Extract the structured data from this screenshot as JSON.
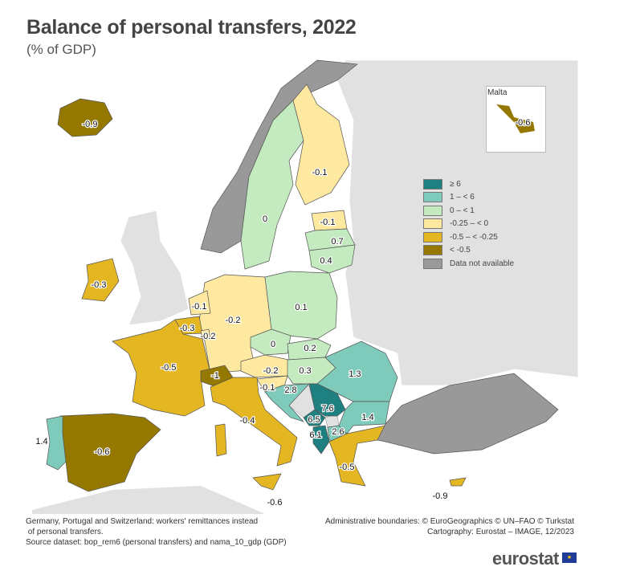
{
  "title": "Balance of personal transfers, 2022",
  "subtitle": "(% of GDP)",
  "legend": {
    "items": [
      {
        "label": "≥ 6",
        "color": "#1e8080"
      },
      {
        "label": "1 – < 6",
        "color": "#7ecbbb"
      },
      {
        "label": "0 – < 1",
        "color": "#c4eac0"
      },
      {
        "label": "-0.25 – < 0",
        "color": "#ffe9a0"
      },
      {
        "label": "-0.5 – < -0.25",
        "color": "#e4b622"
      },
      {
        "label": "< -0.5",
        "color": "#957800"
      },
      {
        "label": "Data not available",
        "color": "#999999"
      }
    ]
  },
  "inset": {
    "title": "Malta",
    "value": "-0.6"
  },
  "values": {
    "iceland": "-0.9",
    "sweden": "0",
    "finland": "-0.1",
    "estonia": "-0.1",
    "latvia": "0.7",
    "lithuania": "0.4",
    "ireland": "-0.3",
    "netherlands": "-0.1",
    "belgium": "-0.3",
    "luxembourg": "-0.2",
    "germany": "-0.2",
    "poland": "0.1",
    "czechia": "0",
    "slovakia": "0.2",
    "austria": "-0.2",
    "hungary": "0.3",
    "slovenia": "-0.1",
    "croatia": "2.8",
    "romania": "1.3",
    "serbia": "7.6",
    "montenegro": "6.5",
    "albania": "6.1",
    "north_macedonia": "2.6",
    "bulgaria": "1.4",
    "france": "-0.5",
    "switzerland": "-1",
    "italy": "-0.4",
    "sicily": "-0.6",
    "spain": "-0.6",
    "portugal": "1.4",
    "greece": "-0.5",
    "cyprus": "-0.9"
  },
  "notes": {
    "left1": "Germany, Portugal and Switzerland: workers' remittances instead",
    "left2": " of personal transfers.",
    "left3": "Source dataset: bop_rem6 (personal transfers) and nama_10_gdp (GDP)",
    "right1": "Administrative boundaries: © EuroGeographics © UN–FAO © Turkstat",
    "right2": "Cartography: Eurostat – IMAGE, 12/2023"
  },
  "logo": "eurostat"
}
